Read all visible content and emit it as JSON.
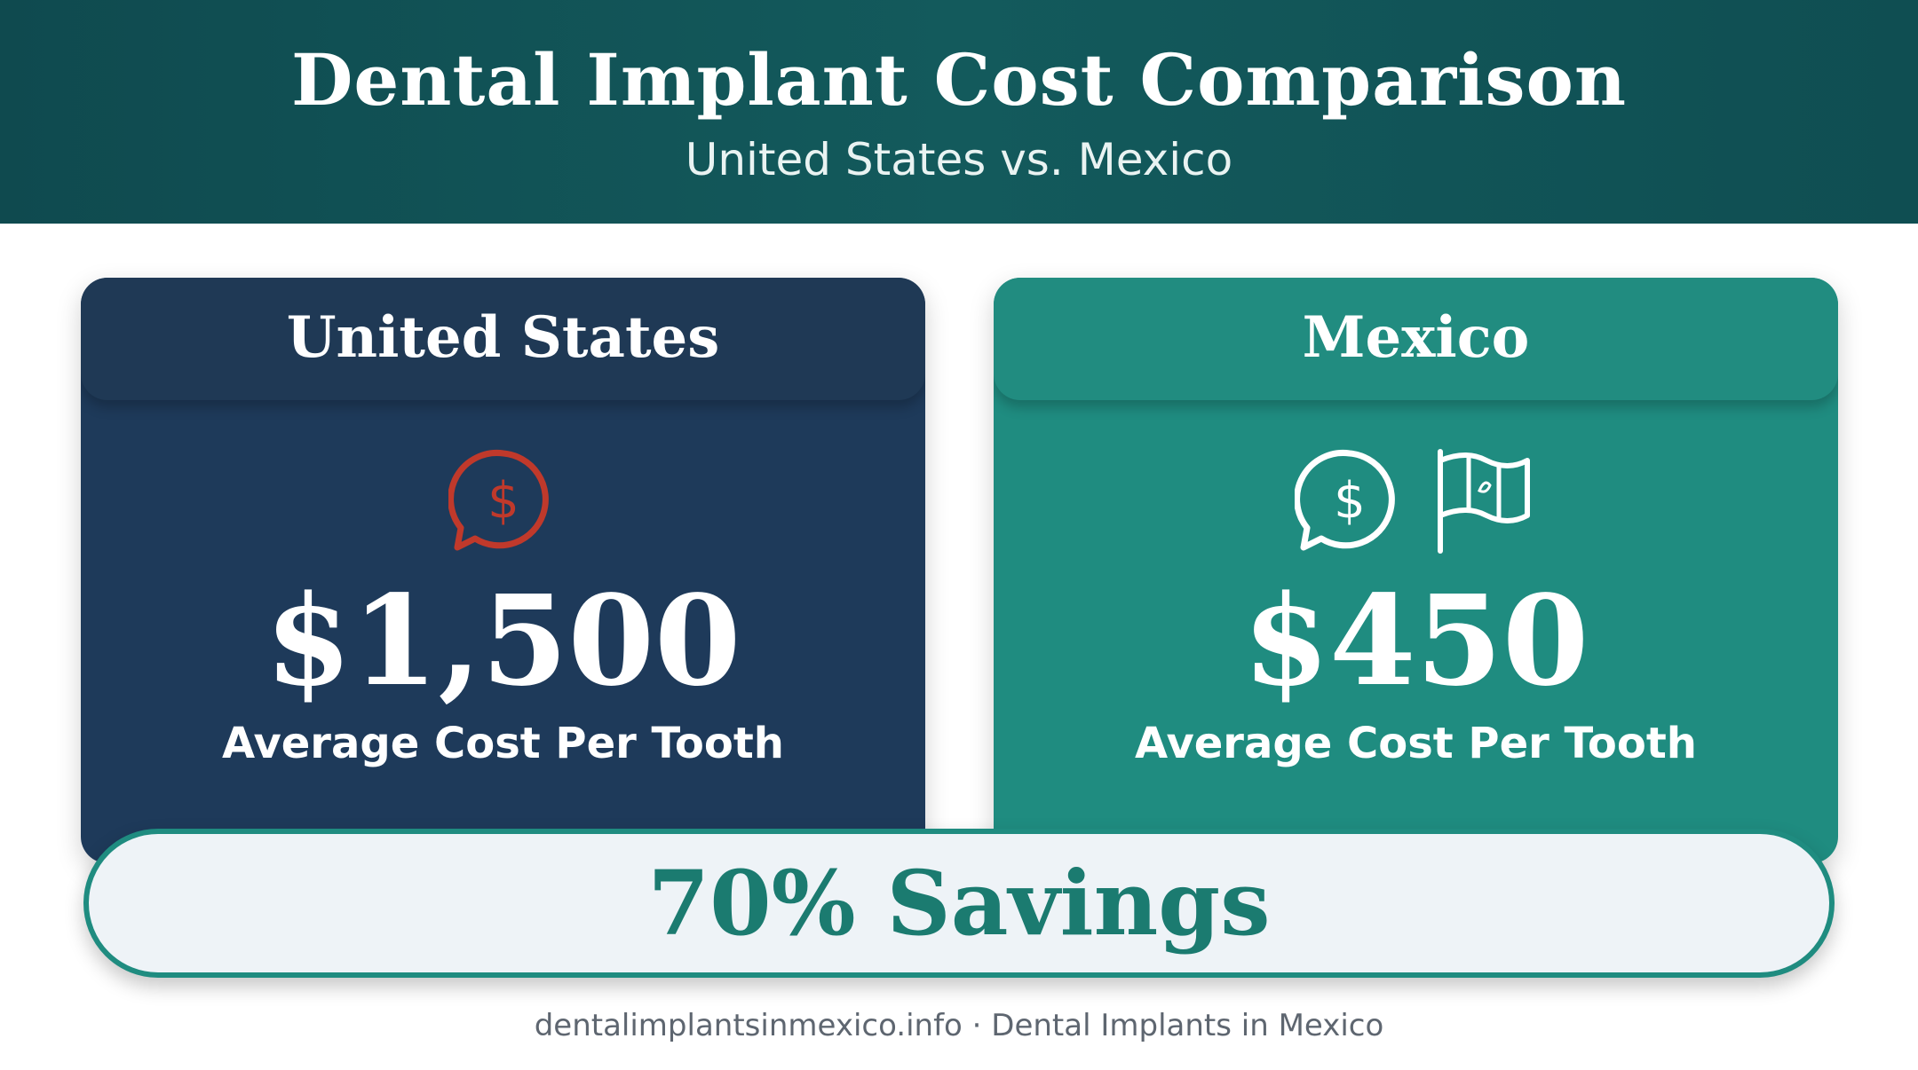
{
  "header": {
    "title": "Dental Implant Cost Comparison",
    "subtitle": "United States vs. Mexico"
  },
  "cards": {
    "us": {
      "title": "United States",
      "price": "$1,500",
      "price_label": "Average Cost Per Tooth",
      "icons": [
        "dollar-speech-bubble-icon"
      ],
      "accent_color": "#c0392b",
      "background_color": "#1e3a5a"
    },
    "mx": {
      "title": "Mexico",
      "price": "$450",
      "price_label": "Average Cost Per Tooth",
      "icons": [
        "dollar-speech-bubble-icon",
        "mexico-flag-icon"
      ],
      "accent_color": "#ffffff",
      "background_color": "#1f8c80"
    }
  },
  "savings": {
    "text": "70% Savings",
    "color": "#1b7b70"
  },
  "footer": {
    "text": "dentalimplantsinmexico.info · Dental Implants in Mexico"
  }
}
